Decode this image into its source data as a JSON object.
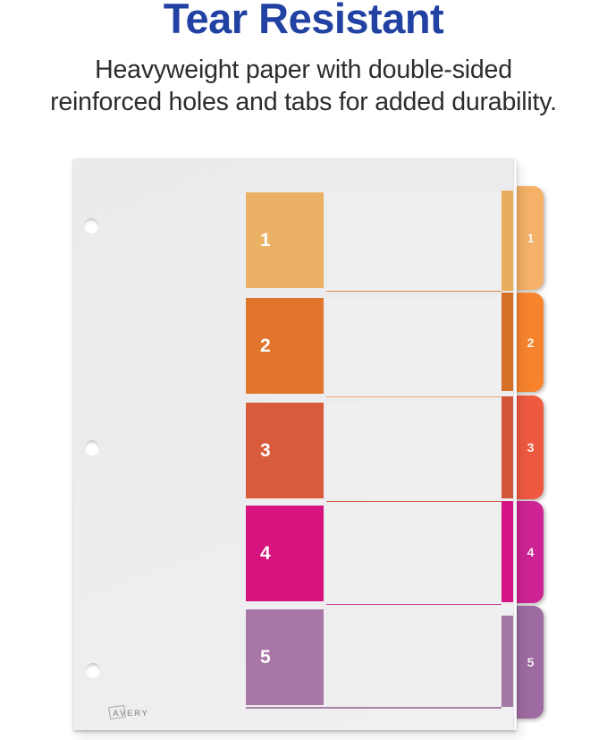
{
  "header": {
    "title": "Tear Resistant",
    "subtitle_line1": "Heavyweight paper with double-sided",
    "subtitle_line2": "reinforced holes and tabs for added durability."
  },
  "colors": {
    "title_text": "#2141a3",
    "subtitle_text": "#2d2c2c",
    "background": "#ffffff",
    "paper": "#ecedee",
    "block_number_text": "#ffffff",
    "tab_number_text": "#ffffff",
    "logo_gray": "#9f9fa1"
  },
  "divider": {
    "brand": "AVERY",
    "rows": [
      {
        "label": "1",
        "block_color": "#ebb164",
        "tab_color": "#f4b167",
        "strip_color": "#e9ad60",
        "line_color": "#dd9040"
      },
      {
        "label": "2",
        "block_color": "#e1752c",
        "tab_color": "#f8832d",
        "strip_color": "#d66f28",
        "line_color": "#eba873"
      },
      {
        "label": "3",
        "block_color": "#d85b3b",
        "tab_color": "#ef5940",
        "strip_color": "#d2553a",
        "line_color": "#cf5c3c"
      },
      {
        "label": "4",
        "block_color": "#d6137e",
        "tab_color": "#cd2394",
        "strip_color": "#d61384",
        "line_color": "#c23e92"
      },
      {
        "label": "5",
        "block_color": "#a976a8",
        "tab_color": "#9d6ba1",
        "strip_color": "#a277a4",
        "line_color": "#a781a5"
      }
    ]
  }
}
